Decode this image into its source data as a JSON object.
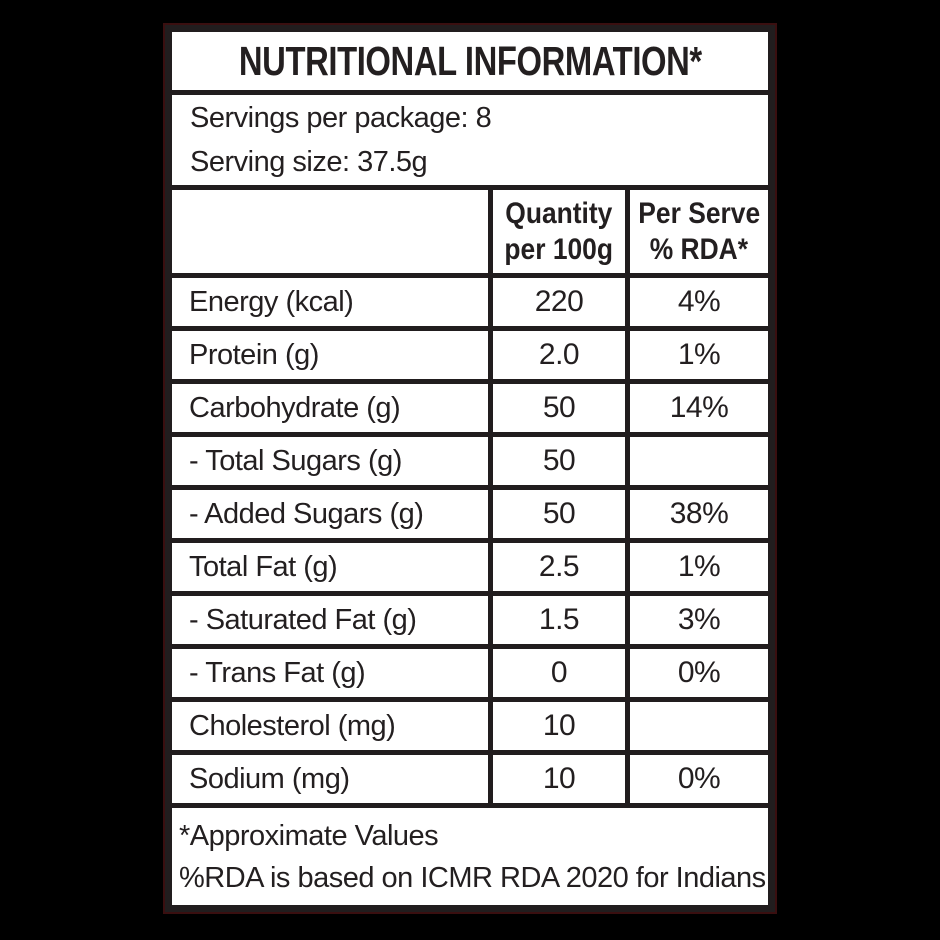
{
  "colors": {
    "page_background": "#000000",
    "panel_background": "#ffffff",
    "border": "#211d1e",
    "text": "#231f20",
    "outer_ring": "#3a0f10"
  },
  "label": {
    "title": "NUTRITIONAL INFORMATION*",
    "servings": {
      "line1": "Servings per package: 8",
      "line2": "Serving size: 37.5g"
    },
    "columns": {
      "nutrient": "",
      "quantity": {
        "line1": "Quantity",
        "line2": "per 100g"
      },
      "per_serve": {
        "line1": "Per Serve",
        "line2": "% RDA*"
      }
    },
    "rows": [
      {
        "label": "Energy (kcal)",
        "quantity": "220",
        "rda": "4%"
      },
      {
        "label": "Protein (g)",
        "quantity": "2.0",
        "rda": "1%"
      },
      {
        "label": "Carbohydrate (g)",
        "quantity": "50",
        "rda": "14%"
      },
      {
        "label": "- Total Sugars (g)",
        "quantity": "50",
        "rda": ""
      },
      {
        "label": "- Added Sugars (g)",
        "quantity": "50",
        "rda": "38%"
      },
      {
        "label": "Total Fat (g)",
        "quantity": "2.5",
        "rda": "1%"
      },
      {
        "label": "- Saturated Fat (g)",
        "quantity": "1.5",
        "rda": "3%"
      },
      {
        "label": "- Trans Fat (g)",
        "quantity": "0",
        "rda": "0%"
      },
      {
        "label": "Cholesterol (mg)",
        "quantity": "10",
        "rda": ""
      },
      {
        "label": "Sodium (mg)",
        "quantity": "10",
        "rda": "0%"
      }
    ],
    "footer": {
      "line1": "*Approximate Values",
      "line2": "%RDA is based on ICMR RDA 2020 for Indians"
    }
  }
}
